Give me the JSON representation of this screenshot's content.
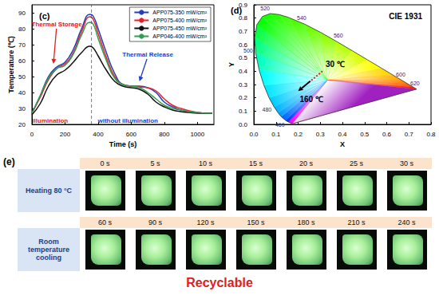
{
  "chart_data": [
    {
      "type": "line",
      "title": "(c)",
      "x_label": "Time (s)",
      "y_label": "Temperature (℃)",
      "xlim": [
        0,
        1100
      ],
      "xticks": [
        0,
        200,
        400,
        600,
        800,
        1000
      ],
      "ylim": [
        20,
        95
      ],
      "yticks": [
        20,
        30,
        40,
        50,
        60,
        70,
        80,
        90
      ],
      "grid": false,
      "legend": "upper right",
      "x": [
        0,
        50,
        100,
        150,
        200,
        250,
        300,
        350,
        370,
        400,
        450,
        500,
        550,
        600,
        650,
        700,
        750,
        800,
        850,
        900,
        950,
        1000,
        1050,
        1090
      ],
      "series": [
        {
          "name": "APP075-350 mW/cm²",
          "color": "#1f3fbf",
          "values": [
            27,
            38,
            50,
            56,
            59,
            67,
            80,
            89,
            88,
            80,
            65,
            52,
            45,
            44,
            44,
            43,
            40,
            34,
            31,
            29,
            28,
            27.5,
            27,
            27
          ]
        },
        {
          "name": "APP075-400 mW/cm²",
          "color": "#e8202a",
          "values": [
            27,
            37,
            48,
            55,
            58,
            65,
            78,
            87.5,
            86,
            77,
            62,
            50,
            45,
            44,
            43.5,
            43,
            41,
            36,
            32,
            30,
            28.5,
            27.5,
            27,
            27
          ]
        },
        {
          "name": "APP075-450 mW/cm²",
          "color": "#111111",
          "values": [
            26,
            33,
            44,
            51,
            54,
            59,
            65,
            69,
            68,
            63,
            54,
            47,
            44,
            43,
            42,
            39,
            34,
            31,
            29,
            28,
            27.5,
            27,
            27,
            27
          ]
        },
        {
          "name": "APP046-400 mW/cm²",
          "color": "#2e9e4f",
          "values": [
            27,
            38,
            49,
            55,
            57,
            64,
            76,
            84,
            83,
            74,
            60,
            49,
            45,
            44,
            43,
            40,
            36,
            32,
            30,
            29,
            28,
            27.5,
            27,
            27
          ]
        }
      ],
      "vlines": [
        360
      ],
      "annotations": [
        {
          "text": "Thermal Storage",
          "x": 150,
          "y": 83,
          "to": [
            130,
            58
          ],
          "color": "#e02020"
        },
        {
          "text": "Thermal Release",
          "x": 700,
          "y": 64,
          "to": [
            650,
            47
          ],
          "color": "#1a3fd0"
        },
        {
          "text": "illumination",
          "x": 110,
          "y": 22.5,
          "color": "#e02020"
        },
        {
          "text": "without illumination",
          "x": 580,
          "y": 22.5,
          "color": "#1a3fd0"
        }
      ]
    },
    {
      "type": "chromaticity",
      "title": "(d)",
      "subtitle": "CIE 1931",
      "x_label": "X",
      "y_label": "Y",
      "xlim": [
        0,
        0.8
      ],
      "xticks": [
        {
          "value": 0,
          "label": "0.0"
        },
        0.1,
        0.2,
        0.3,
        0.4,
        0.5,
        0.6,
        0.7,
        0.8
      ],
      "ylim": [
        0,
        0.9
      ],
      "yticks": [
        {
          "value": 0,
          "label": "0.0"
        },
        0.1,
        0.2,
        0.3,
        0.4,
        0.5,
        0.6,
        0.7,
        0.8,
        0.9
      ],
      "grid": false,
      "locus": {
        "wavelengths": [
          380,
          450,
          460,
          470,
          475,
          480,
          485,
          490,
          495,
          500,
          505,
          510,
          515,
          520,
          525,
          530,
          540,
          550,
          560,
          570,
          580,
          590,
          600,
          610,
          620,
          640,
          700
        ],
        "x": [
          0.1741,
          0.1566,
          0.144,
          0.1241,
          0.1096,
          0.0913,
          0.0687,
          0.0454,
          0.0235,
          0.0082,
          0.0039,
          0.0139,
          0.0389,
          0.0743,
          0.1142,
          0.1547,
          0.2296,
          0.3016,
          0.3731,
          0.4441,
          0.5125,
          0.5752,
          0.627,
          0.6658,
          0.6915,
          0.719,
          0.7347
        ],
        "y": [
          0.005,
          0.0177,
          0.0297,
          0.0578,
          0.0868,
          0.1327,
          0.2007,
          0.295,
          0.4127,
          0.5384,
          0.6548,
          0.7502,
          0.812,
          0.8338,
          0.8262,
          0.8059,
          0.7543,
          0.6923,
          0.6245,
          0.5547,
          0.4866,
          0.4242,
          0.3725,
          0.334,
          0.3083,
          0.2809,
          0.2653
        ]
      },
      "labeled_wavelengths": [
        460,
        480,
        500,
        520,
        540,
        560,
        600,
        620
      ],
      "points": [
        {
          "label": "30 ℃",
          "x": 0.31,
          "y": 0.4
        },
        {
          "label": "160 ℃",
          "x": 0.2,
          "y": 0.25
        }
      ]
    }
  ],
  "photo_panel": {
    "label": "(e)",
    "rows": [
      {
        "label": "Heating 80 °C",
        "times": [
          "0 s",
          "5 s",
          "10 s",
          "15 s",
          "20 s",
          "25 s",
          "30 s"
        ]
      },
      {
        "label": "Room temperature cooling",
        "times": [
          "60 s",
          "90 s",
          "120 s",
          "150 s",
          "180 s",
          "210 s",
          "240 s"
        ]
      }
    ],
    "caption": "Recyclable"
  }
}
